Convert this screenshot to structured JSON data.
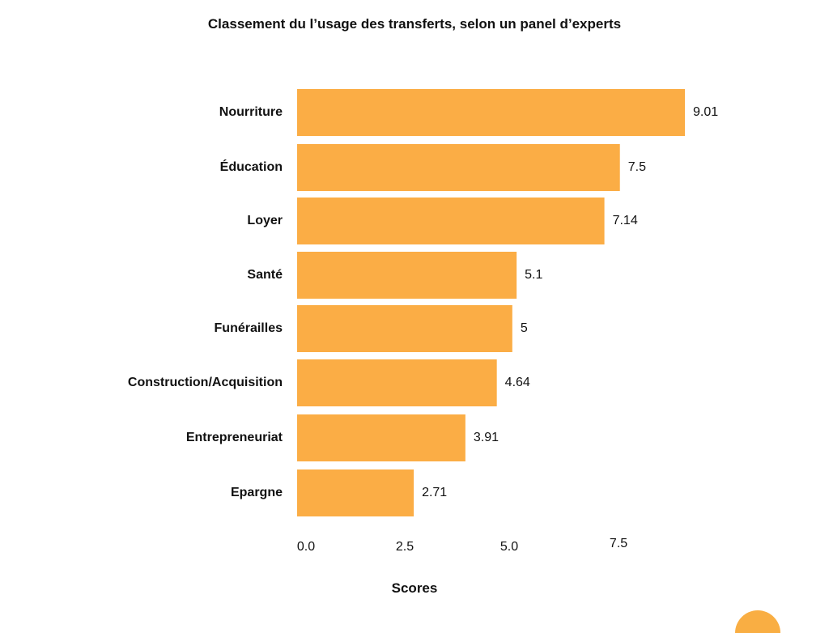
{
  "chart_data": {
    "type": "bar",
    "orientation": "horizontal",
    "title": "Classement du l’usage des transferts, selon un panel d’experts",
    "xlabel": "Scores",
    "ylabel": "",
    "categories": [
      "Nourriture",
      "Éducation",
      "Loyer",
      "Santé",
      "Funérailles",
      "Construction/Acquisition",
      "Entrepreneuriat",
      "Epargne"
    ],
    "values": [
      9.01,
      7.5,
      7.14,
      5.1,
      5,
      4.64,
      3.91,
      2.71
    ],
    "value_labels": [
      "9.01",
      "7.5",
      "7.14",
      "5.1",
      "5",
      "4.64",
      "3.91",
      "2.71"
    ],
    "x_ticks": [
      "0.0",
      "2.5",
      "5.0",
      "7.5"
    ],
    "xlim": [
      0,
      9.01
    ],
    "grid": false,
    "legend": "none",
    "bar_color": "#FBAD45",
    "decoration_color": "#F9AE43"
  }
}
